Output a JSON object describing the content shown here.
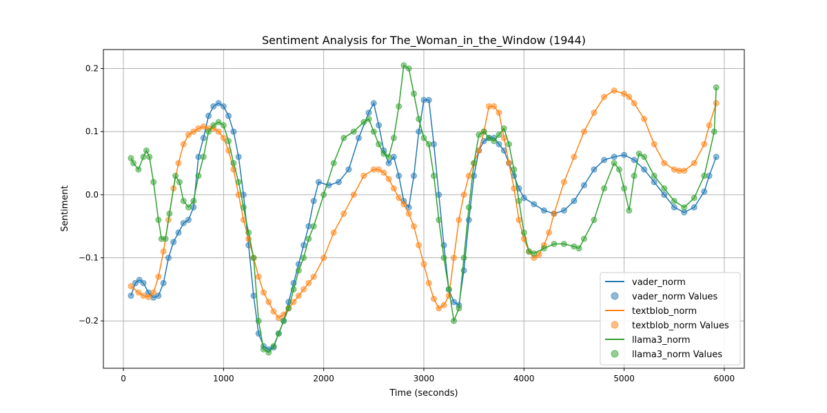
{
  "chart_data": {
    "type": "line",
    "title": "Sentiment Analysis for The_Woman_in_the_Window (1944)",
    "xlabel": "Time (seconds)",
    "ylabel": "Sentiment",
    "xlim": [
      -200,
      6200
    ],
    "ylim": [
      -0.275,
      0.23
    ],
    "xticks": [
      0,
      1000,
      2000,
      3000,
      4000,
      5000,
      6000
    ],
    "yticks": [
      -0.2,
      -0.1,
      0.0,
      0.1,
      0.2
    ],
    "ytick_labels": [
      "−0.2",
      "−0.1",
      "0.0",
      "0.1",
      "0.2"
    ],
    "grid": true,
    "legend_position": "lower-right",
    "series": [
      {
        "name": "vader_norm",
        "color": "#1f77b4",
        "x": [
          75,
          120,
          160,
          200,
          250,
          300,
          350,
          400,
          450,
          500,
          550,
          600,
          650,
          700,
          750,
          800,
          850,
          900,
          950,
          1000,
          1050,
          1100,
          1150,
          1200,
          1250,
          1300,
          1350,
          1400,
          1450,
          1500,
          1550,
          1600,
          1650,
          1700,
          1750,
          1800,
          1850,
          1900,
          1950,
          2050,
          2150,
          2250,
          2350,
          2450,
          2500,
          2550,
          2600,
          2650,
          2700,
          2750,
          2800,
          2850,
          2900,
          2950,
          3000,
          3050,
          3100,
          3150,
          3200,
          3250,
          3300,
          3350,
          3400,
          3450,
          3500,
          3550,
          3600,
          3650,
          3700,
          3750,
          3800,
          3850,
          3900,
          3950,
          4000,
          4100,
          4200,
          4300,
          4400,
          4500,
          4600,
          4700,
          4800,
          4900,
          5000,
          5100,
          5200,
          5300,
          5400,
          5500,
          5600,
          5700,
          5800,
          5850,
          5920
        ],
        "y": [
          -0.16,
          -0.14,
          -0.135,
          -0.14,
          -0.155,
          -0.163,
          -0.16,
          -0.14,
          -0.1,
          -0.075,
          -0.06,
          -0.045,
          -0.04,
          -0.02,
          0.06,
          0.09,
          0.125,
          0.14,
          0.145,
          0.14,
          0.125,
          0.1,
          0.06,
          0.0,
          -0.08,
          -0.16,
          -0.22,
          -0.24,
          -0.245,
          -0.242,
          -0.22,
          -0.2,
          -0.17,
          -0.14,
          -0.11,
          -0.08,
          -0.05,
          -0.01,
          0.02,
          0.015,
          0.02,
          0.04,
          0.09,
          0.13,
          0.145,
          0.11,
          0.07,
          0.05,
          0.06,
          0.03,
          -0.01,
          -0.02,
          0.03,
          0.1,
          0.15,
          0.15,
          0.08,
          0.0,
          -0.08,
          -0.15,
          -0.17,
          -0.175,
          -0.12,
          -0.04,
          0.03,
          0.07,
          0.085,
          0.09,
          0.09,
          0.08,
          0.07,
          0.05,
          0.03,
          0.01,
          -0.005,
          -0.015,
          -0.025,
          -0.03,
          -0.025,
          -0.01,
          0.015,
          0.04,
          0.055,
          0.06,
          0.063,
          0.055,
          0.04,
          0.02,
          0.0,
          -0.02,
          -0.028,
          -0.02,
          0.005,
          0.03,
          0.06
        ]
      },
      {
        "name": "textblob_norm",
        "color": "#ff7f0e",
        "x": [
          75,
          150,
          200,
          250,
          300,
          350,
          400,
          450,
          500,
          550,
          600,
          650,
          700,
          750,
          800,
          850,
          900,
          950,
          1000,
          1050,
          1100,
          1150,
          1200,
          1250,
          1300,
          1350,
          1400,
          1450,
          1500,
          1550,
          1600,
          1650,
          1700,
          1750,
          1800,
          1850,
          1900,
          2000,
          2100,
          2200,
          2300,
          2400,
          2500,
          2550,
          2600,
          2650,
          2700,
          2750,
          2800,
          2850,
          2900,
          2950,
          3000,
          3050,
          3100,
          3150,
          3200,
          3250,
          3300,
          3350,
          3400,
          3450,
          3500,
          3550,
          3600,
          3650,
          3700,
          3750,
          3800,
          3850,
          3900,
          3950,
          4000,
          4050,
          4100,
          4150,
          4200,
          4250,
          4300,
          4400,
          4500,
          4600,
          4700,
          4800,
          4900,
          5000,
          5050,
          5100,
          5200,
          5300,
          5400,
          5500,
          5550,
          5600,
          5700,
          5800,
          5850,
          5920
        ],
        "y": [
          -0.145,
          -0.155,
          -0.16,
          -0.162,
          -0.155,
          -0.13,
          -0.09,
          -0.04,
          0.01,
          0.05,
          0.08,
          0.095,
          0.1,
          0.105,
          0.108,
          0.105,
          0.105,
          0.1,
          0.09,
          0.07,
          0.04,
          0.0,
          -0.04,
          -0.07,
          -0.1,
          -0.13,
          -0.155,
          -0.17,
          -0.185,
          -0.195,
          -0.19,
          -0.18,
          -0.17,
          -0.16,
          -0.15,
          -0.14,
          -0.13,
          -0.1,
          -0.06,
          -0.03,
          0.0,
          0.03,
          0.04,
          0.04,
          0.035,
          0.025,
          0.01,
          -0.005,
          -0.015,
          -0.03,
          -0.05,
          -0.08,
          -0.11,
          -0.14,
          -0.165,
          -0.18,
          -0.175,
          -0.16,
          -0.1,
          -0.04,
          0.0,
          0.03,
          0.05,
          0.07,
          0.1,
          0.14,
          0.14,
          0.13,
          0.09,
          0.05,
          0.01,
          -0.04,
          -0.07,
          -0.09,
          -0.1,
          -0.095,
          -0.08,
          -0.06,
          -0.03,
          0.02,
          0.06,
          0.1,
          0.13,
          0.155,
          0.165,
          0.16,
          0.155,
          0.145,
          0.12,
          0.08,
          0.05,
          0.04,
          0.038,
          0.038,
          0.05,
          0.08,
          0.11,
          0.145
        ]
      },
      {
        "name": "llama3_norm",
        "color": "#2ca02c",
        "x": [
          75,
          100,
          150,
          200,
          230,
          260,
          300,
          350,
          380,
          420,
          460,
          520,
          560,
          600,
          650,
          700,
          750,
          800,
          850,
          900,
          950,
          1000,
          1050,
          1100,
          1150,
          1200,
          1250,
          1300,
          1350,
          1400,
          1450,
          1500,
          1550,
          1600,
          1650,
          1700,
          1750,
          1800,
          1850,
          1900,
          2000,
          2100,
          2200,
          2300,
          2400,
          2450,
          2500,
          2550,
          2600,
          2650,
          2700,
          2750,
          2800,
          2850,
          2900,
          2950,
          3000,
          3050,
          3100,
          3150,
          3200,
          3250,
          3300,
          3350,
          3400,
          3450,
          3500,
          3550,
          3600,
          3650,
          3700,
          3750,
          3800,
          3850,
          3900,
          3950,
          4000,
          4050,
          4100,
          4200,
          4300,
          4400,
          4500,
          4550,
          4600,
          4700,
          4800,
          4900,
          4950,
          5000,
          5050,
          5100,
          5150,
          5200,
          5300,
          5400,
          5500,
          5600,
          5700,
          5800,
          5900,
          5920
        ],
        "y": [
          0.058,
          0.05,
          0.04,
          0.06,
          0.07,
          0.06,
          0.02,
          -0.04,
          -0.07,
          -0.07,
          -0.03,
          0.03,
          0.02,
          -0.01,
          -0.02,
          -0.01,
          0.03,
          0.06,
          0.1,
          0.11,
          0.115,
          0.11,
          0.085,
          0.05,
          0.02,
          -0.02,
          -0.06,
          -0.1,
          -0.2,
          -0.245,
          -0.25,
          -0.24,
          -0.22,
          -0.2,
          -0.18,
          -0.15,
          -0.12,
          -0.1,
          -0.07,
          -0.05,
          0.0,
          0.05,
          0.09,
          0.1,
          0.115,
          0.12,
          0.1,
          0.08,
          0.065,
          0.06,
          0.09,
          0.14,
          0.205,
          0.2,
          0.16,
          0.12,
          0.09,
          0.08,
          0.03,
          -0.04,
          -0.1,
          -0.15,
          -0.2,
          -0.18,
          -0.1,
          -0.02,
          0.05,
          0.095,
          0.1,
          0.09,
          0.085,
          0.095,
          0.105,
          0.08,
          0.04,
          -0.01,
          -0.06,
          -0.09,
          -0.093,
          -0.085,
          -0.078,
          -0.078,
          -0.082,
          -0.085,
          -0.07,
          -0.04,
          0.01,
          0.05,
          0.04,
          0.01,
          -0.025,
          0.03,
          0.065,
          0.06,
          0.03,
          0.01,
          -0.01,
          -0.02,
          -0.005,
          0.03,
          0.1,
          0.17
        ]
      }
    ],
    "legend": [
      {
        "label": "vader_norm",
        "kind": "line",
        "color": "#1f77b4"
      },
      {
        "label": "vader_norm Values",
        "kind": "marker",
        "color": "#1f77b4"
      },
      {
        "label": "textblob_norm",
        "kind": "line",
        "color": "#ff7f0e"
      },
      {
        "label": "textblob_norm Values",
        "kind": "marker",
        "color": "#ff7f0e"
      },
      {
        "label": "llama3_norm",
        "kind": "line",
        "color": "#2ca02c"
      },
      {
        "label": "llama3_norm Values",
        "kind": "marker",
        "color": "#2ca02c"
      }
    ]
  }
}
